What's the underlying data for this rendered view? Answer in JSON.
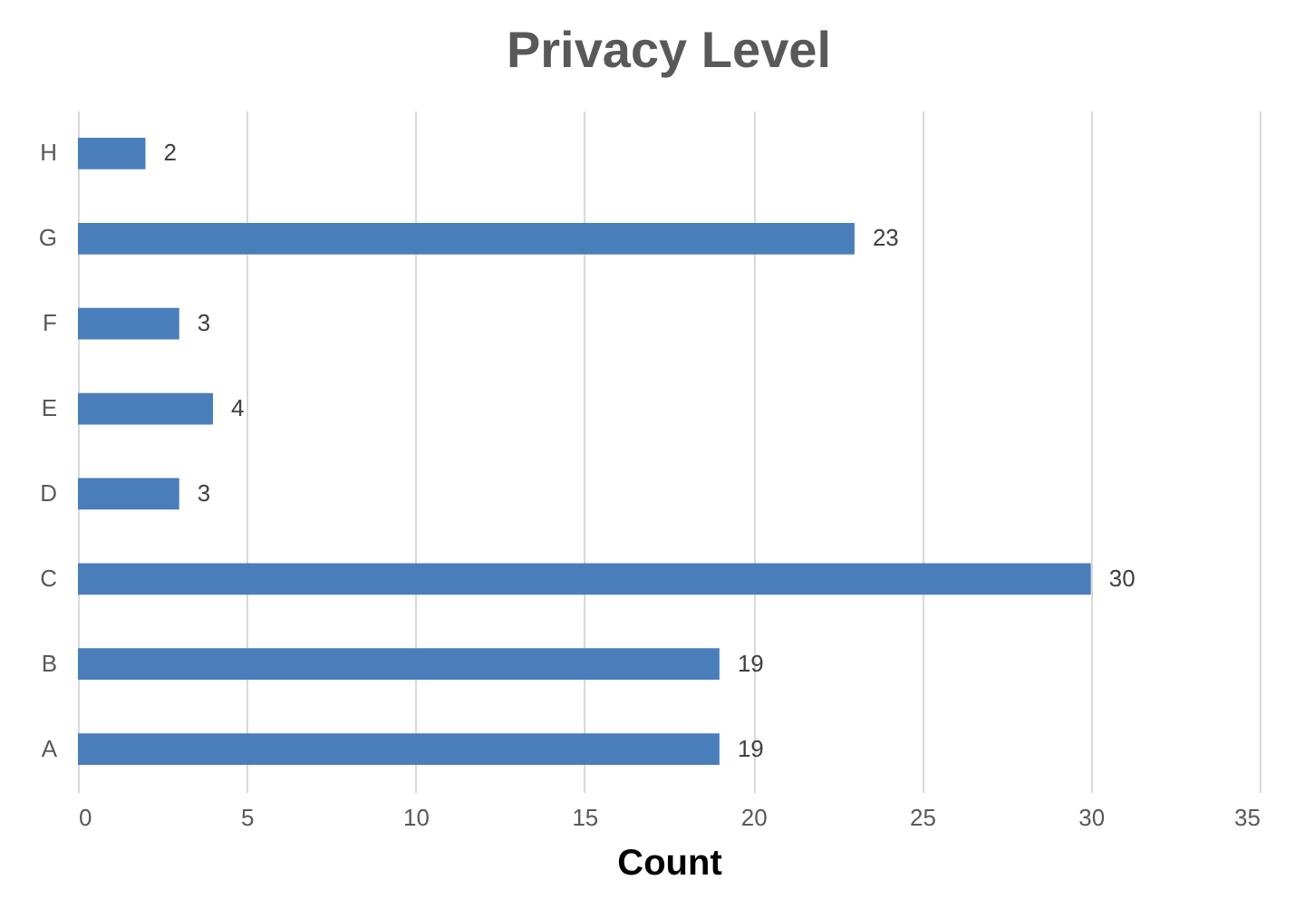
{
  "chart_data": {
    "type": "bar",
    "orientation": "horizontal",
    "title": "Privacy Level",
    "xlabel": "Count",
    "categories": [
      "H",
      "G",
      "F",
      "E",
      "D",
      "C",
      "B",
      "A"
    ],
    "values": [
      2,
      23,
      3,
      4,
      3,
      30,
      19,
      19
    ],
    "color": "#4a7ebb",
    "xlim": [
      0,
      35
    ],
    "xticks": [
      0,
      5,
      10,
      15,
      20,
      25,
      30,
      35
    ],
    "grid": "x",
    "data_labels": true
  }
}
